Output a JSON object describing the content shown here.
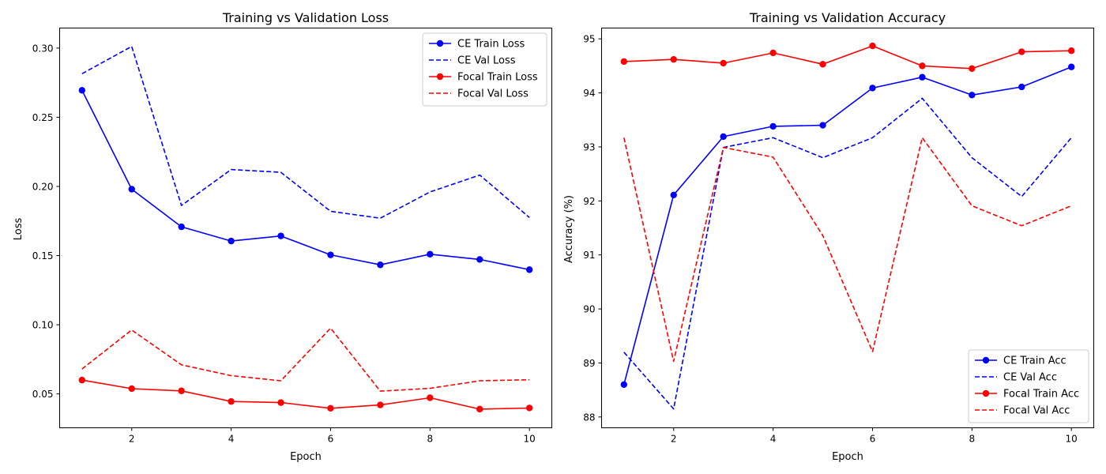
{
  "chart_data": [
    {
      "type": "line",
      "title": "Training vs Validation Loss",
      "xlabel": "Epoch",
      "ylabel": "Loss",
      "xlim": [
        0.55,
        10.45
      ],
      "ylim": [
        0.0255,
        0.3145
      ],
      "xticks": [
        2,
        4,
        6,
        8,
        10
      ],
      "yticks": [
        0.05,
        0.1,
        0.15,
        0.2,
        0.25,
        0.3
      ],
      "ytick_labels": [
        "0.05",
        "0.10",
        "0.15",
        "0.20",
        "0.25",
        "0.30"
      ],
      "grid": false,
      "legend_position": "top-right",
      "x": [
        1,
        2,
        3,
        4,
        5,
        6,
        7,
        8,
        9,
        10
      ],
      "series": [
        {
          "name": "CE Train Loss",
          "color": "#0000ff",
          "style": "solid",
          "marker": true,
          "values": [
            0.2695,
            0.198,
            0.1708,
            0.1605,
            0.1642,
            0.1505,
            0.1433,
            0.151,
            0.1472,
            0.1398
          ]
        },
        {
          "name": "CE Val Loss",
          "color": "#0000ff",
          "style": "dashed",
          "marker": false,
          "values": [
            0.2815,
            0.3012,
            0.1862,
            0.2122,
            0.2102,
            0.182,
            0.177,
            0.196,
            0.2082,
            0.1775
          ]
        },
        {
          "name": "Focal Train Loss",
          "color": "#ff0000",
          "style": "solid",
          "marker": true,
          "values": [
            0.06,
            0.0538,
            0.0522,
            0.0445,
            0.0437,
            0.0396,
            0.042,
            0.0472,
            0.039,
            0.0398
          ]
        },
        {
          "name": "Focal Val Loss",
          "color": "#ff0000",
          "style": "dashed",
          "marker": false,
          "values": [
            0.068,
            0.0962,
            0.071,
            0.0632,
            0.0595,
            0.0975,
            0.052,
            0.054,
            0.0595,
            0.0602
          ]
        }
      ]
    },
    {
      "type": "line",
      "title": "Training vs Validation Accuracy",
      "xlabel": "Epoch",
      "ylabel": "Accuracy (%)",
      "xlim": [
        0.55,
        10.45
      ],
      "ylim": [
        87.8,
        95.2
      ],
      "xticks": [
        2,
        4,
        6,
        8,
        10
      ],
      "yticks": [
        88,
        89,
        90,
        91,
        92,
        93,
        94,
        95
      ],
      "ytick_labels": [
        "88",
        "89",
        "90",
        "91",
        "92",
        "93",
        "94",
        "95"
      ],
      "grid": false,
      "legend_position": "bottom-right",
      "x": [
        1,
        2,
        3,
        4,
        5,
        6,
        7,
        8,
        9,
        10
      ],
      "series": [
        {
          "name": "CE Train Acc",
          "color": "#0000ff",
          "style": "solid",
          "marker": true,
          "values": [
            88.6,
            92.11,
            93.19,
            93.38,
            93.4,
            94.09,
            94.29,
            93.96,
            94.11,
            94.48
          ]
        },
        {
          "name": "CE Val Acc",
          "color": "#0000ff",
          "style": "dashed",
          "marker": false,
          "values": [
            89.2,
            88.15,
            92.99,
            93.17,
            92.8,
            93.17,
            93.9,
            92.8,
            92.08,
            93.17
          ]
        },
        {
          "name": "Focal Train Acc",
          "color": "#ff0000",
          "style": "solid",
          "marker": true,
          "values": [
            94.58,
            94.62,
            94.55,
            94.74,
            94.53,
            94.87,
            94.5,
            94.45,
            94.76,
            94.78
          ]
        },
        {
          "name": "Focal Val Acc",
          "color": "#ff0000",
          "style": "dashed",
          "marker": false,
          "values": [
            93.17,
            89.03,
            92.99,
            92.81,
            91.36,
            89.21,
            93.17,
            91.91,
            91.54,
            91.91
          ]
        }
      ]
    }
  ]
}
